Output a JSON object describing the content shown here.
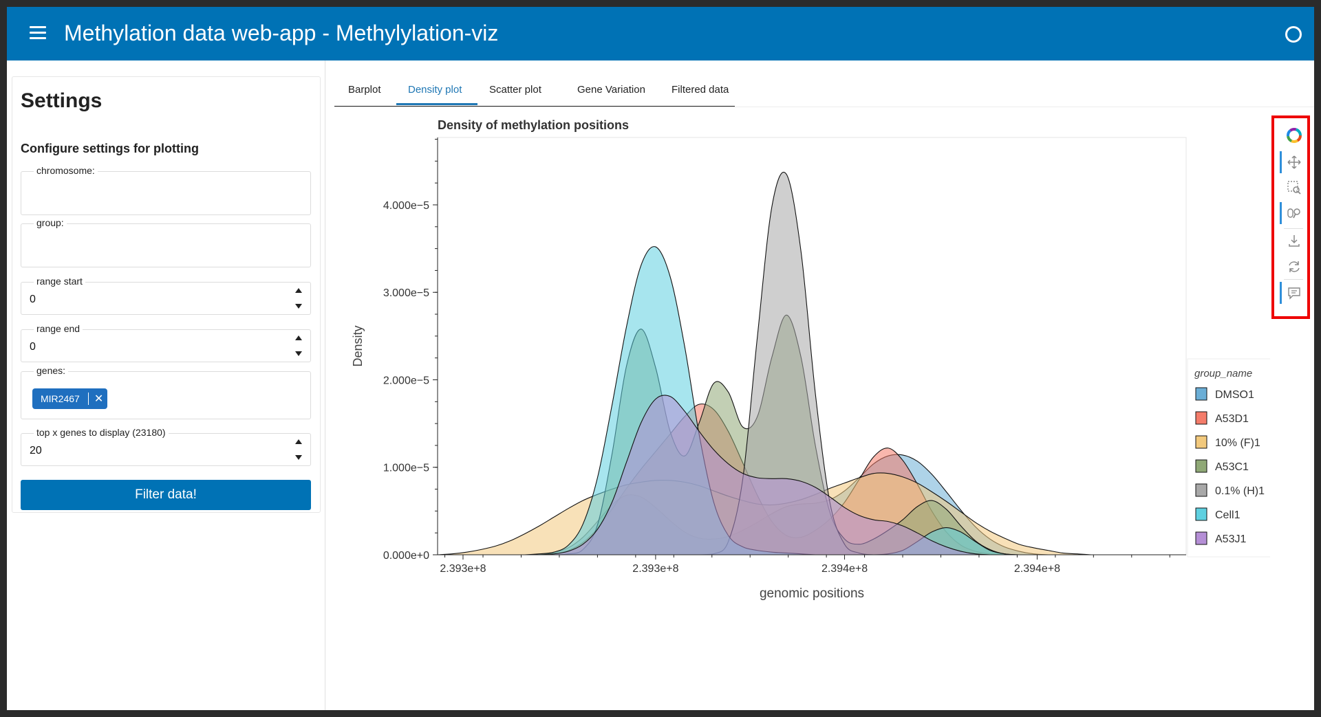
{
  "header": {
    "title": "Methylation data web-app - Methylylation-viz",
    "menu_icon": "hamburger-menu-icon",
    "status_icon": "circle-status-icon",
    "accent_color": "#0072b5"
  },
  "sidebar": {
    "title": "Settings",
    "subtitle": "Configure settings for plotting",
    "chromosome": {
      "label": "chromosome:",
      "value": ""
    },
    "group": {
      "label": "group:",
      "value": ""
    },
    "range_start": {
      "label": "range start",
      "value": "0"
    },
    "range_end": {
      "label": "range end",
      "value": "0"
    },
    "genes": {
      "label": "genes:",
      "chips": [
        "MIR2467"
      ]
    },
    "top_x": {
      "label": "top x genes to display (23180)",
      "value": "20"
    },
    "filter_button": "Filter data!"
  },
  "tabs": [
    {
      "label": "Barplot",
      "active": false
    },
    {
      "label": "Density plot",
      "active": true
    },
    {
      "label": "Scatter plot",
      "active": false
    },
    {
      "label": "Gene Variation",
      "active": false
    },
    {
      "label": "Filtered data",
      "active": false
    }
  ],
  "toolbar": {
    "tools": [
      "bokeh-logo-icon",
      "pan-icon",
      "box-zoom-icon",
      "wheel-zoom-icon",
      "save-icon",
      "reset-icon",
      "hover-icon"
    ]
  },
  "chart_data": {
    "type": "area",
    "title": "Density of methylation positions",
    "xlabel": "genomic positions",
    "ylabel": "Density",
    "x_tick_labels": [
      "2.393e+8",
      "2.393e+8",
      "2.394e+8",
      "2.394e+8"
    ],
    "y_ticks": [
      0,
      1e-05,
      2e-05,
      3e-05,
      4e-05
    ],
    "y_tick_labels": [
      "0.000e+0",
      "1.000e−5",
      "2.000e−5",
      "3.000e−5",
      "4.000e−5"
    ],
    "xlim": [
      239262000,
      239468000
    ],
    "ylim": [
      0,
      4.77e-05
    ],
    "legend_title": "group_name",
    "legend_placement": "right",
    "grid": false,
    "x": [
      239262000,
      239266000,
      239270000,
      239274000,
      239278000,
      239282000,
      239286000,
      239290000,
      239294000,
      239298000,
      239302000,
      239306000,
      239310000,
      239314000,
      239318000,
      239322000,
      239326000,
      239330000,
      239334000,
      239338000,
      239342000,
      239346000,
      239350000,
      239354000,
      239358000,
      239362000,
      239366000,
      239370000,
      239374000,
      239378000,
      239382000,
      239386000,
      239390000,
      239394000,
      239398000,
      239402000,
      239406000,
      239410000,
      239414000,
      239418000,
      239422000,
      239426000,
      239430000,
      239434000,
      239438000,
      239442000,
      239446000,
      239450000,
      239454000,
      239458000,
      239462000,
      239466000
    ],
    "series": [
      {
        "name": "DMSO1",
        "color": "#6baed6",
        "values": [
          0,
          0,
          0,
          0,
          0,
          0,
          0,
          0,
          2.5e-07,
          8e-07,
          2e-06,
          3.8e-06,
          5.7e-06,
          6.8e-06,
          6.6e-06,
          5.4e-06,
          3.9e-06,
          2.6e-06,
          1.9e-06,
          1.8e-06,
          2.1e-06,
          2.8e-06,
          3.7e-06,
          4.7e-06,
          5.5e-06,
          5.8e-06,
          5.9e-06,
          6.3e-06,
          7.3e-06,
          8.8e-06,
          1.04e-05,
          1.13e-05,
          1.14e-05,
          1.07e-05,
          9.2e-06,
          7.2e-06,
          5.1e-06,
          3.2e-06,
          1.8e-06,
          9e-07,
          4e-07,
          1e-07,
          0,
          0,
          0,
          0,
          0,
          0,
          0,
          0,
          0,
          0
        ]
      },
      {
        "name": "A53D1",
        "color": "#f47c6a",
        "values": [
          0,
          0,
          0,
          0,
          0,
          0,
          0,
          0,
          1e-07,
          5e-07,
          1.4e-06,
          3e-06,
          5.2e-06,
          7.6e-06,
          9.8e-06,
          1.18e-05,
          1.38e-05,
          1.58e-05,
          1.72e-05,
          1.66e-05,
          1.41e-05,
          1.05e-05,
          6.8e-06,
          3.8e-06,
          2.2e-06,
          2e-06,
          2.8e-06,
          4.1e-06,
          6e-06,
          8.6e-06,
          1.12e-05,
          1.22e-05,
          1.08e-05,
          8.1e-06,
          5e-06,
          2.6e-06,
          1.1e-06,
          4e-07,
          1e-07,
          0,
          0,
          0,
          0,
          0,
          0,
          0,
          0,
          0,
          0,
          0,
          0,
          0
        ]
      },
      {
        "name": "10% (F)1",
        "color": "#f2c97d",
        "values": [
          0,
          1e-07,
          3e-07,
          6e-07,
          1e-06,
          1.6e-06,
          2.4e-06,
          3.3e-06,
          4.3e-06,
          5.3e-06,
          6.2e-06,
          6.9e-06,
          7.5e-06,
          8e-06,
          8.3e-06,
          8.5e-06,
          8.5e-06,
          8.3e-06,
          7.9e-06,
          7.3e-06,
          6.7e-06,
          6.2e-06,
          5.8e-06,
          5.7e-06,
          5.9e-06,
          6.3e-06,
          6.9e-06,
          7.6e-06,
          8.2e-06,
          8.8e-06,
          9.3e-06,
          9.3e-06,
          8.9e-06,
          8.2e-06,
          7.2e-06,
          6.1e-06,
          4.9e-06,
          3.7e-06,
          2.7e-06,
          1.9e-06,
          1.2e-06,
          8e-07,
          5e-07,
          2e-07,
          1e-07,
          0,
          0,
          0,
          0,
          0,
          0,
          0
        ]
      },
      {
        "name": "A53C1",
        "color": "#8fa876",
        "values": [
          0,
          0,
          0,
          0,
          0,
          0,
          0,
          0,
          0,
          1e-07,
          6e-07,
          3.4e-06,
          1.15e-05,
          2.16e-05,
          2.58e-05,
          2.14e-05,
          1.41e-05,
          1.13e-05,
          1.51e-05,
          1.96e-05,
          1.86e-05,
          1.46e-05,
          1.58e-05,
          2.26e-05,
          2.74e-05,
          2.26e-05,
          1.24e-05,
          4.8e-06,
          1.8e-06,
          1.2e-06,
          1.8e-06,
          2.8e-06,
          4e-06,
          5.5e-06,
          6.2e-06,
          5.2e-06,
          3.3e-06,
          1.6e-06,
          6e-07,
          1e-07,
          0,
          0,
          0,
          0,
          0,
          0,
          0,
          0,
          0,
          0,
          0,
          0
        ]
      },
      {
        "name": "0.1% (H)1",
        "color": "#a8a8a8",
        "values": [
          0,
          0,
          0,
          0,
          0,
          0,
          0,
          0,
          0,
          0,
          0,
          0,
          0,
          0,
          0,
          0,
          0,
          0,
          0,
          1e-07,
          1.5e-06,
          8.7e-06,
          2.49e-05,
          3.98e-05,
          4.35e-05,
          3.47e-05,
          1.83e-05,
          5.9e-06,
          1.2e-06,
          2e-07,
          0,
          0,
          0,
          0,
          0,
          0,
          0,
          0,
          0,
          0,
          0,
          0,
          0,
          0,
          0,
          0,
          0,
          0,
          0,
          0,
          0,
          0
        ]
      },
      {
        "name": "Cell1",
        "color": "#5ed0e0",
        "values": [
          0,
          0,
          0,
          0,
          0,
          0,
          0,
          1e-07,
          3e-07,
          1.1e-06,
          3.5e-06,
          8.8e-06,
          1.71e-05,
          2.61e-05,
          3.31e-05,
          3.52e-05,
          3.18e-05,
          2.38e-05,
          1.37e-05,
          6e-06,
          2.2e-06,
          9e-07,
          5e-07,
          3e-07,
          2e-07,
          1e-07,
          0,
          0,
          0,
          0,
          0,
          1e-07,
          5e-07,
          1.5e-06,
          2.6e-06,
          3.1e-06,
          2.6e-06,
          1.5e-06,
          5e-07,
          1e-07,
          0,
          0,
          0,
          0,
          0,
          0,
          0,
          0,
          0,
          0,
          0,
          0
        ]
      },
      {
        "name": "A53J1",
        "color": "#b58fd6",
        "values": [
          0,
          0,
          0,
          0,
          0,
          0,
          0,
          0,
          1e-07,
          4e-07,
          1.2e-06,
          2.9e-06,
          6e-06,
          1.06e-05,
          1.51e-05,
          1.78e-05,
          1.81e-05,
          1.64e-05,
          1.41e-05,
          1.2e-05,
          1.04e-05,
          9.3e-06,
          8.8e-06,
          8.7e-06,
          8.7e-06,
          8.4e-06,
          7.7e-06,
          6.6e-06,
          5.4e-06,
          4.5e-06,
          4e-06,
          3.8e-06,
          3.3e-06,
          2.5e-06,
          1.6e-06,
          9e-07,
          4e-07,
          1e-07,
          0,
          0,
          0,
          0,
          0,
          0,
          0,
          0,
          0,
          0,
          0,
          0,
          0,
          0
        ]
      }
    ]
  }
}
